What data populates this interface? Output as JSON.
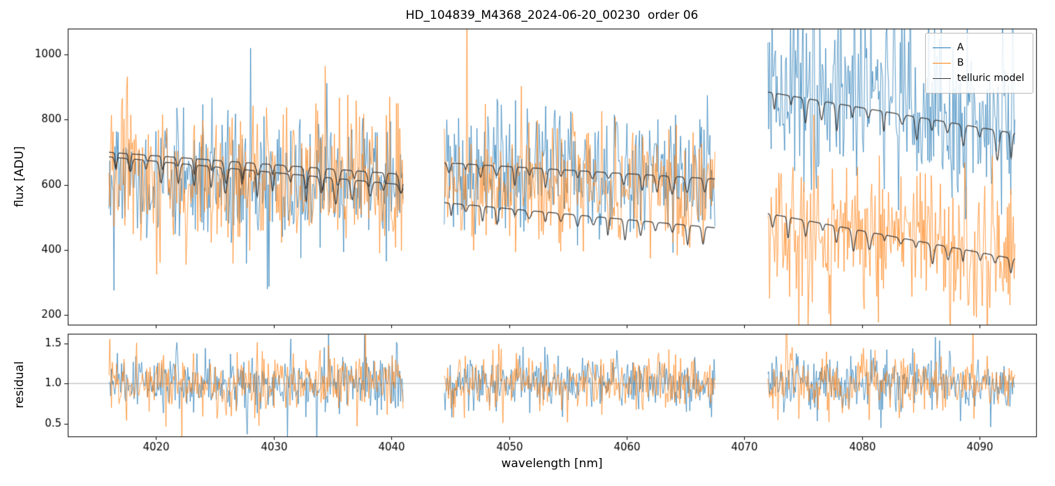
{
  "chart_data": {
    "type": "line",
    "title": "HD_104839_M4368_2024-06-20_00230  order 06",
    "xlabel": "wavelength [nm]",
    "xlim": [
      4012.5,
      4094.8
    ],
    "xticks": [
      4020,
      4030,
      4040,
      4050,
      4060,
      4070,
      4080,
      4090
    ],
    "grid": false,
    "legend_position": "upper right",
    "legend": [
      {
        "label": "A",
        "color": "#1f77b4"
      },
      {
        "label": "B",
        "color": "#ff7f0e"
      },
      {
        "label": "telluric model",
        "color": "#3a3a3a"
      }
    ],
    "panels": [
      {
        "name": "flux",
        "ylabel": "flux [ADU]",
        "ylim": [
          170,
          1080
        ],
        "yticks": [
          200,
          400,
          600,
          800,
          1000
        ]
      },
      {
        "name": "residual",
        "ylabel": "residual",
        "ylim": [
          0.34,
          1.62
        ],
        "yticks": [
          0.5,
          1.0,
          1.5
        ],
        "hline": 1.0
      }
    ],
    "segments": [
      {
        "x_range": [
          4016.0,
          4041.0
        ],
        "A": {
          "level": [
            630,
            590
          ],
          "noise": 108
        },
        "B": {
          "level": [
            640,
            595
          ],
          "noise": 112
        },
        "telluric_A": {
          "level": [
            700,
            632
          ],
          "dip_depth": 55
        },
        "telluric_B": {
          "level": [
            686,
            600
          ],
          "dip_depth": 62
        },
        "residual_noise": 0.17
      },
      {
        "x_range": [
          4044.5,
          4067.5
        ],
        "A": {
          "level": [
            640,
            620
          ],
          "noise": 95
        },
        "B": {
          "level": [
            600,
            580
          ],
          "noise": 95
        },
        "telluric_A": {
          "level": [
            668,
            618
          ],
          "dip_depth": 45
        },
        "telluric_B": {
          "level": [
            545,
            468
          ],
          "dip_depth": 52
        },
        "residual_noise": 0.16
      },
      {
        "x_range": [
          4072.0,
          4093.0
        ],
        "A": {
          "level": [
            900,
            800
          ],
          "noise": 160
        },
        "B": {
          "level": [
            470,
            400
          ],
          "noise": 105
        },
        "telluric_A": {
          "level": [
            885,
            758
          ],
          "dip_depth": 70
        },
        "telluric_B": {
          "level": [
            512,
            372
          ],
          "dip_depth": 55
        },
        "residual_noise": 0.17
      }
    ],
    "telluric_dip_spacing_nm": 1.35,
    "seed": 42
  }
}
